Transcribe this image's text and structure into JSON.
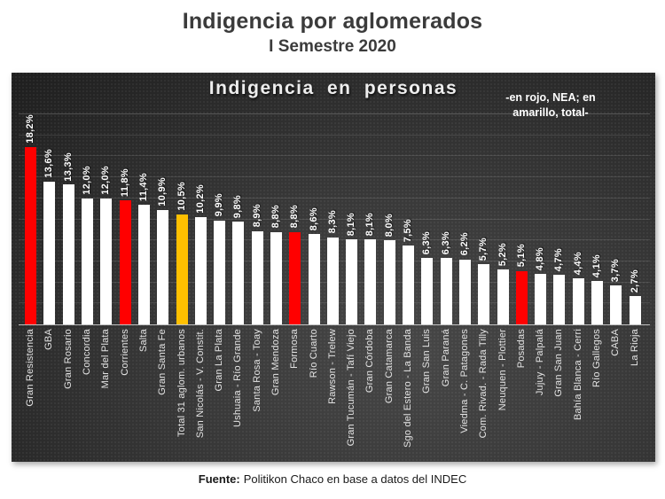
{
  "page": {
    "title": "Indigencia por aglomerados",
    "subtitle": "I Semestre 2020",
    "source_label": "Fuente:",
    "source_text": "Politikon Chaco en base a datos del INDEC"
  },
  "chart": {
    "title": "Indigencia en personas",
    "note_line1": "-en rojo, NEA; en",
    "note_line2": "amarillo, total-"
  },
  "chart_data": {
    "type": "bar",
    "title": "Indigencia en personas",
    "annotation": "-en rojo, NEA; en amarillo, total-",
    "xlabel": "",
    "ylabel": "",
    "ylim": [
      0,
      20
    ],
    "grid_step": 2,
    "grid_on": true,
    "legend": {
      "red": "NEA",
      "yellow": "total"
    },
    "color_map": {
      "white": "#FFFFFF",
      "red": "#FF0000",
      "yellow": "#FFC000"
    },
    "categories": [
      "Gran Resistencia",
      "GBA",
      "Gran Rosario",
      "Concordia",
      "Mar del Plata",
      "Corrientes",
      "Salta",
      "Gran Santa Fe",
      "Total 31 aglom. urbanos",
      "San Nicolás - V. Constit.",
      "Gran La Plata",
      "Ushuaia - Río Grande",
      "Santa Rosa - Toay",
      "Gran Mendoza",
      "Formosa",
      "Río Cuarto",
      "Rawson - Trelew",
      "Gran Tucumán - Tafí Viejo",
      "Gran Córdoba",
      "Gran Catamarca",
      "Sgo del Estero - La Banda",
      "Gran San Luis",
      "Gran Paraná",
      "Viedma - C. Patagones",
      "Com. Rivad. - Rada Tilly",
      "Neuquen - Plottier",
      "Posadas",
      "Jujuy - Palpalá",
      "Gran San Juan",
      "Bahía Blanca - Cerri",
      "Río Gallegos",
      "CABA",
      "La Rioja"
    ],
    "values": [
      18.2,
      13.6,
      13.3,
      12.0,
      12.0,
      11.8,
      11.4,
      10.9,
      10.5,
      10.2,
      9.9,
      9.8,
      8.9,
      8.8,
      8.8,
      8.6,
      8.3,
      8.1,
      8.1,
      8.0,
      7.5,
      6.3,
      6.3,
      6.2,
      5.7,
      5.2,
      5.1,
      4.8,
      4.7,
      4.4,
      4.1,
      3.7,
      2.7
    ],
    "value_labels": [
      "18,2%",
      "13,6%",
      "13,3%",
      "12,0%",
      "12,0%",
      "11,8%",
      "11,4%",
      "10,9%",
      "10,5%",
      "10,2%",
      "9,9%",
      "9,8%",
      "8,9%",
      "8,8%",
      "8,8%",
      "8,6%",
      "8,3%",
      "8,1%",
      "8,1%",
      "8,0%",
      "7,5%",
      "6,3%",
      "6,3%",
      "6,2%",
      "5,7%",
      "5,2%",
      "5,1%",
      "4,8%",
      "4,7%",
      "4,4%",
      "4,1%",
      "3,7%",
      "2,7%"
    ],
    "bar_colors": [
      "red",
      "white",
      "white",
      "white",
      "white",
      "red",
      "white",
      "white",
      "yellow",
      "white",
      "white",
      "white",
      "white",
      "white",
      "red",
      "white",
      "white",
      "white",
      "white",
      "white",
      "white",
      "white",
      "white",
      "white",
      "white",
      "white",
      "red",
      "white",
      "white",
      "white",
      "white",
      "white",
      "white"
    ]
  }
}
